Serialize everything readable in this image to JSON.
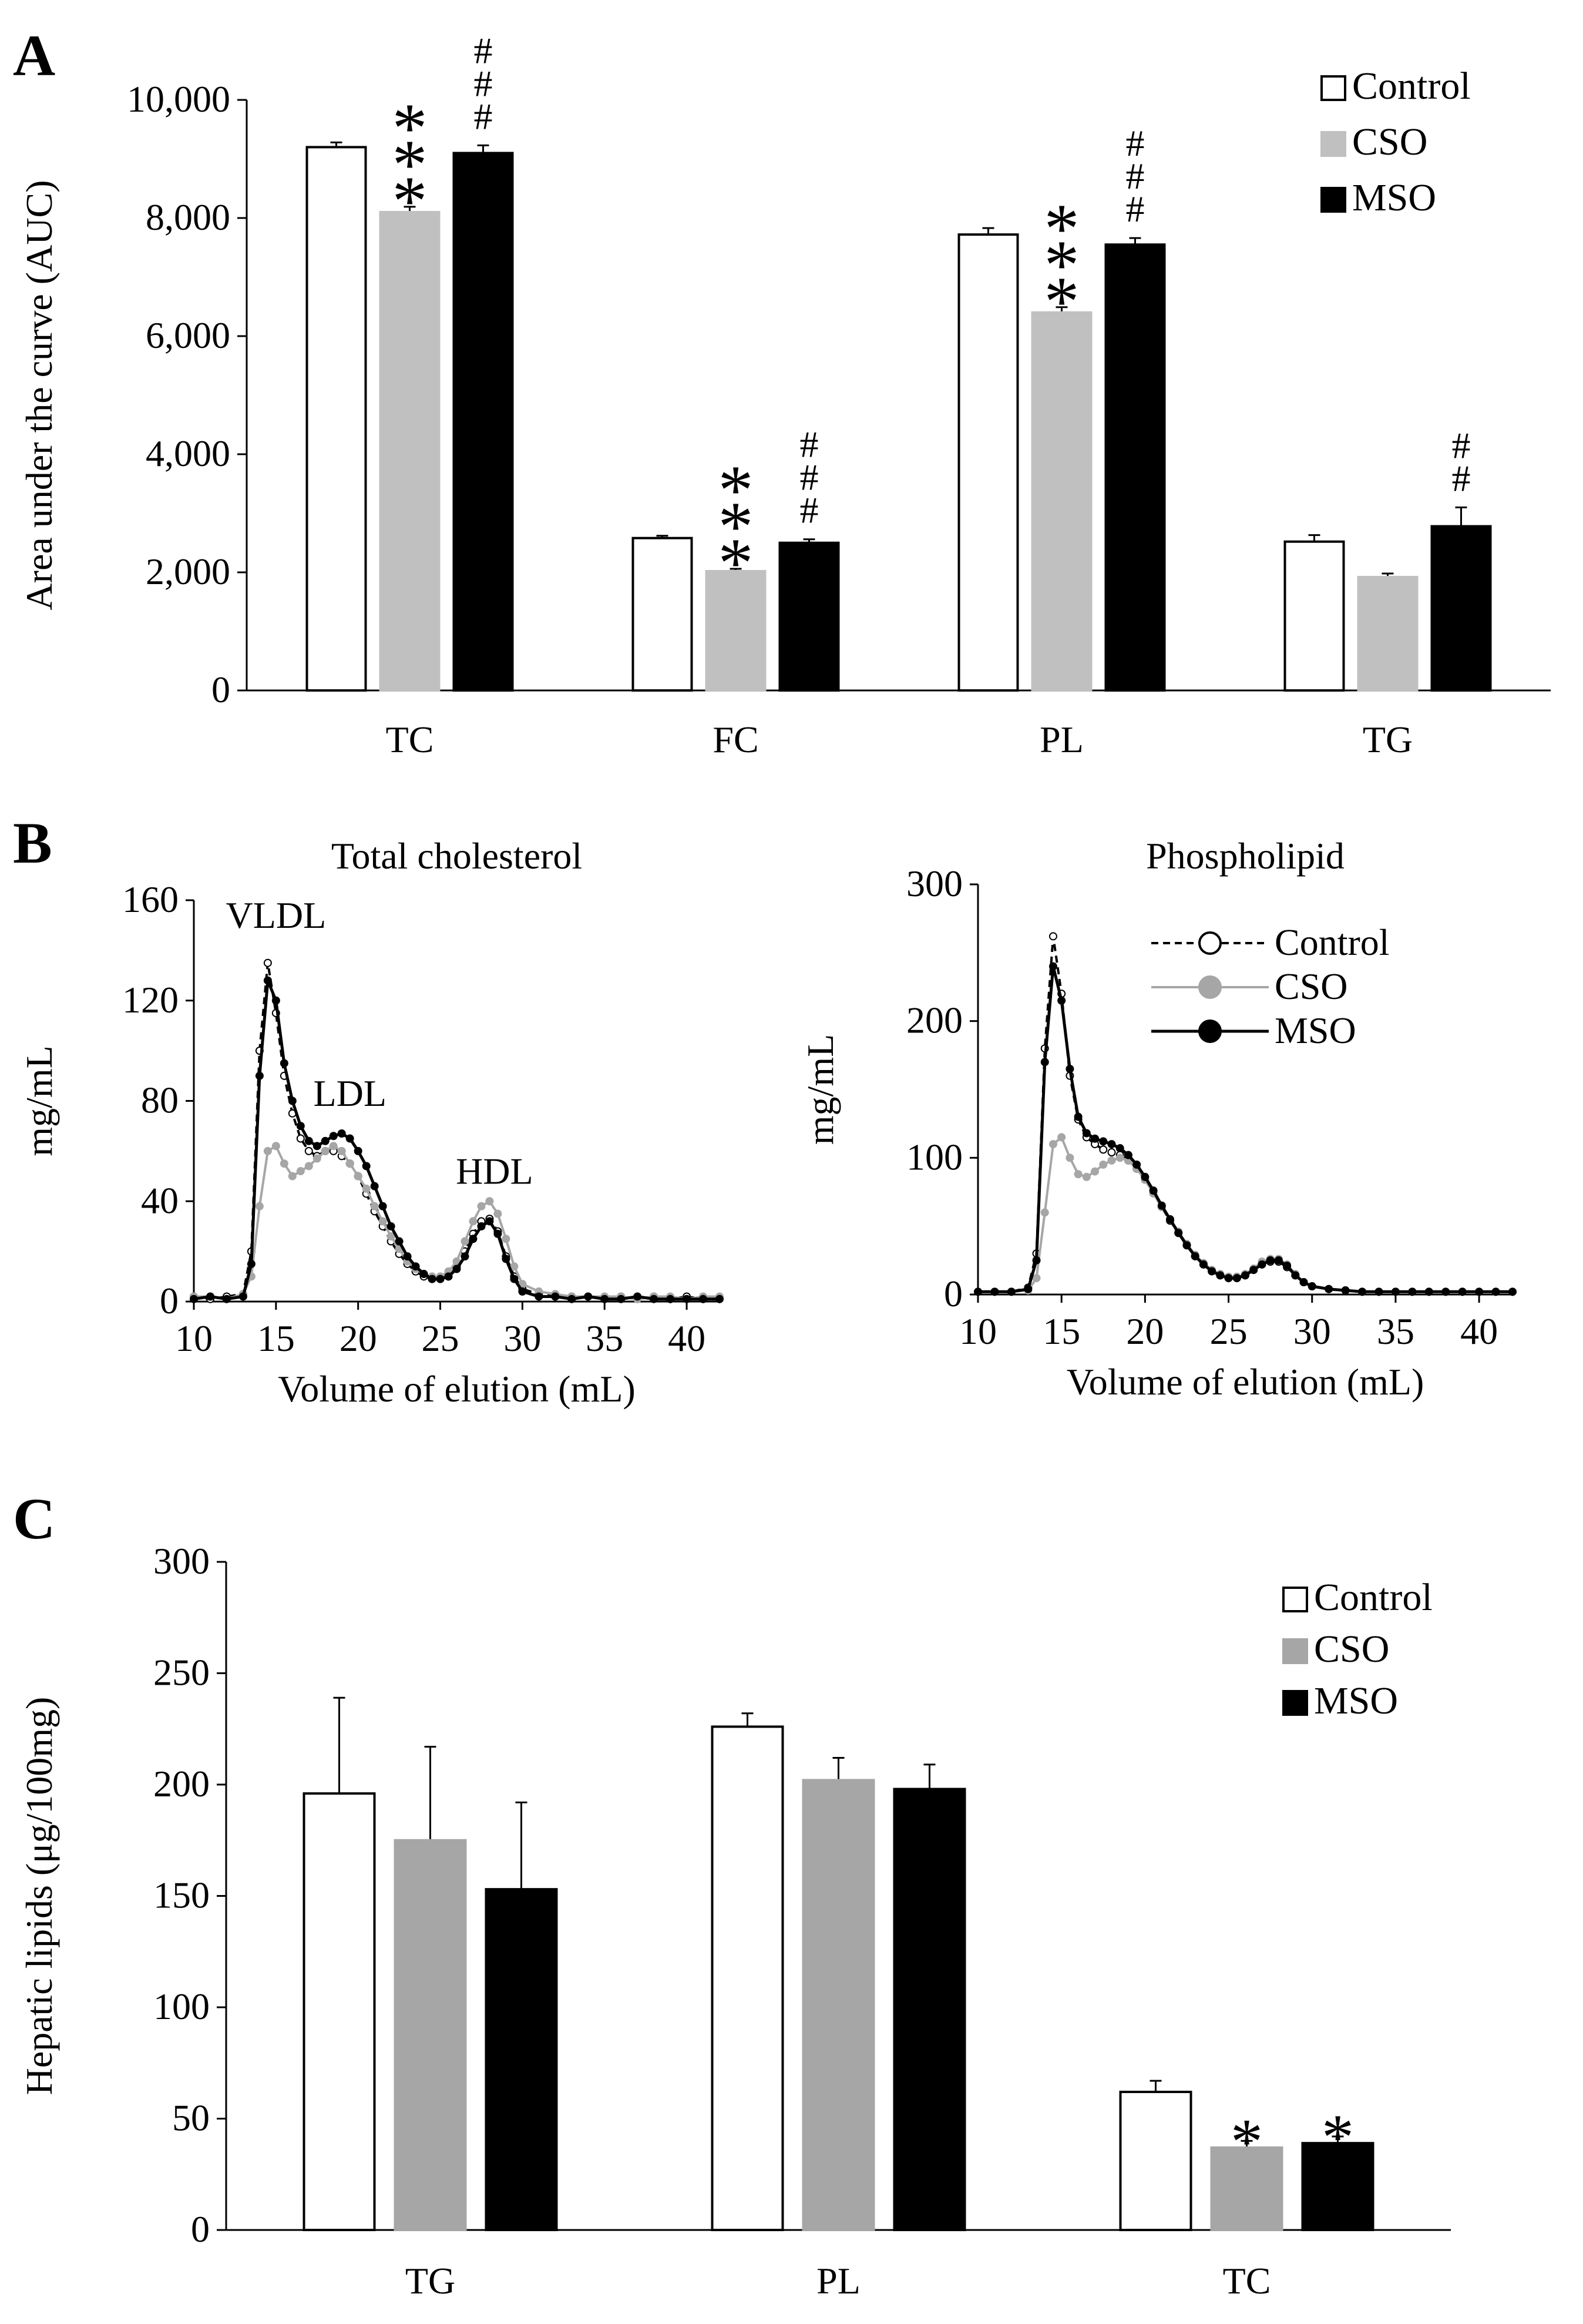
{
  "chart_data": [
    {
      "panel": "A",
      "type": "bar",
      "ylabel": "Area under the curve (AUC)",
      "xlabel": "",
      "ylim": [
        0,
        10000
      ],
      "yticks": [
        0,
        2000,
        4000,
        6000,
        8000,
        10000
      ],
      "ytick_labels": [
        "0",
        "2,000",
        "4,000",
        "6,000",
        "8,000",
        "10,000"
      ],
      "categories": [
        "TC",
        "FC",
        "PL",
        "TG"
      ],
      "series": [
        {
          "name": "Control",
          "color": "#ffffff",
          "values": [
            9200,
            2580,
            7720,
            2520
          ],
          "errors": [
            80,
            40,
            110,
            110
          ]
        },
        {
          "name": "CSO",
          "color": "#c0c0c0",
          "values": [
            8100,
            2020,
            6400,
            1920
          ],
          "errors": [
            90,
            40,
            90,
            60
          ]
        },
        {
          "name": "MSO",
          "color": "#000000",
          "values": [
            9100,
            2500,
            7550,
            2780
          ],
          "errors": [
            130,
            60,
            110,
            320
          ]
        }
      ],
      "annotations": [
        {
          "series": 1,
          "category": 0,
          "text": "***"
        },
        {
          "series": 2,
          "category": 0,
          "text": "###"
        },
        {
          "series": 1,
          "category": 1,
          "text": "***"
        },
        {
          "series": 2,
          "category": 1,
          "text": "###"
        },
        {
          "series": 1,
          "category": 2,
          "text": "***"
        },
        {
          "series": 2,
          "category": 2,
          "text": "###"
        },
        {
          "series": 2,
          "category": 3,
          "text": "##"
        }
      ],
      "legend": "top-right"
    },
    {
      "panel": "B",
      "type": "line",
      "title": "Total cholesterol",
      "xlabel": "Volume of elution (mL)",
      "ylabel": "mg/mL",
      "xlim": [
        10,
        42
      ],
      "ylim": [
        0,
        160
      ],
      "xticks": [
        10,
        15,
        20,
        25,
        30,
        35,
        40
      ],
      "yticks": [
        0,
        40,
        80,
        120,
        160
      ],
      "annotations": [
        {
          "text": "VLDL",
          "x": 15,
          "y": 149
        },
        {
          "text": "LDL",
          "x": 19.5,
          "y": 78
        },
        {
          "text": "HDL",
          "x": 28.3,
          "y": 47
        }
      ],
      "x": [
        10,
        11,
        12,
        13,
        13.5,
        14,
        14.5,
        15,
        15.5,
        16,
        16.5,
        17,
        17.5,
        18,
        18.5,
        19,
        19.5,
        20,
        20.5,
        21,
        21.5,
        22,
        22.5,
        23,
        23.5,
        24,
        24.5,
        25,
        25.5,
        26,
        26.5,
        27,
        27.5,
        28,
        28.5,
        29,
        29.5,
        30,
        31,
        32,
        33,
        34,
        35,
        36,
        37,
        38,
        39,
        40,
        41,
        42
      ],
      "series": [
        {
          "name": "Control",
          "style": "dashed",
          "values": [
            2,
            1,
            2,
            3,
            20,
            100,
            135,
            115,
            90,
            75,
            65,
            60,
            58,
            60,
            60,
            58,
            55,
            50,
            43,
            36,
            30,
            24,
            19,
            15,
            12,
            10,
            9,
            9,
            10,
            14,
            20,
            27,
            32,
            33,
            28,
            18,
            10,
            5,
            3,
            2,
            2,
            2,
            1,
            2,
            1,
            2,
            1,
            2,
            1,
            1
          ]
        },
        {
          "name": "CSO",
          "style": "gray",
          "values": [
            2,
            2,
            1,
            3,
            10,
            38,
            60,
            62,
            55,
            50,
            52,
            54,
            57,
            60,
            62,
            60,
            55,
            50,
            45,
            38,
            32,
            26,
            21,
            16,
            13,
            11,
            10,
            10,
            12,
            16,
            24,
            32,
            38,
            40,
            35,
            25,
            14,
            7,
            4,
            3,
            2,
            2,
            2,
            2,
            1,
            2,
            2,
            1,
            2,
            2
          ]
        },
        {
          "name": "MSO",
          "style": "black",
          "values": [
            1,
            2,
            1,
            2,
            15,
            90,
            128,
            120,
            95,
            80,
            70,
            64,
            62,
            64,
            66,
            67,
            65,
            60,
            54,
            46,
            38,
            30,
            24,
            18,
            14,
            11,
            9,
            9,
            10,
            13,
            18,
            25,
            30,
            32,
            27,
            17,
            9,
            4,
            2,
            2,
            1,
            2,
            1,
            1,
            2,
            1,
            1,
            1,
            1,
            1
          ]
        }
      ]
    },
    {
      "panel": "B",
      "type": "line",
      "title": "Phospholipid",
      "xlabel": "Volume of elution (mL)",
      "ylabel": "mg/mL",
      "xlim": [
        10,
        42
      ],
      "ylim": [
        0,
        300
      ],
      "xticks": [
        10,
        15,
        20,
        25,
        30,
        35,
        40
      ],
      "yticks": [
        0,
        100,
        200,
        300
      ],
      "legend": "top-right",
      "x": [
        10,
        11,
        12,
        13,
        13.5,
        14,
        14.5,
        15,
        15.5,
        16,
        16.5,
        17,
        17.5,
        18,
        18.5,
        19,
        19.5,
        20,
        20.5,
        21,
        21.5,
        22,
        22.5,
        23,
        23.5,
        24,
        24.5,
        25,
        25.5,
        26,
        26.5,
        27,
        27.5,
        28,
        28.5,
        29,
        29.5,
        30,
        31,
        32,
        33,
        34,
        35,
        36,
        37,
        38,
        39,
        40,
        41,
        42
      ],
      "series": [
        {
          "name": "Control",
          "style": "dashed",
          "values": [
            2,
            2,
            2,
            5,
            30,
            180,
            262,
            220,
            160,
            128,
            115,
            110,
            106,
            104,
            102,
            98,
            92,
            84,
            74,
            64,
            54,
            45,
            36,
            28,
            22,
            17,
            14,
            12,
            12,
            14,
            18,
            22,
            24,
            24,
            20,
            14,
            9,
            6,
            4,
            3,
            2,
            2,
            2,
            2,
            2,
            2,
            2,
            2,
            2,
            2
          ]
        },
        {
          "name": "CSO",
          "style": "gray",
          "values": [
            2,
            2,
            2,
            3,
            12,
            60,
            110,
            115,
            100,
            88,
            86,
            90,
            95,
            98,
            100,
            98,
            92,
            84,
            74,
            64,
            55,
            46,
            37,
            29,
            23,
            18,
            15,
            13,
            13,
            15,
            19,
            24,
            26,
            26,
            22,
            15,
            9,
            6,
            4,
            3,
            2,
            2,
            2,
            2,
            2,
            2,
            2,
            2,
            2,
            2
          ]
        },
        {
          "name": "MSO",
          "style": "black",
          "values": [
            2,
            2,
            2,
            4,
            25,
            170,
            240,
            215,
            165,
            130,
            118,
            114,
            112,
            110,
            107,
            102,
            95,
            86,
            76,
            65,
            55,
            45,
            36,
            28,
            22,
            17,
            14,
            12,
            12,
            14,
            18,
            22,
            25,
            25,
            21,
            14,
            9,
            6,
            4,
            3,
            2,
            2,
            2,
            2,
            2,
            2,
            2,
            2,
            2,
            2
          ]
        }
      ]
    },
    {
      "panel": "C",
      "type": "bar",
      "ylabel": "Hepatic lipids (μg/100mg)",
      "xlabel": "",
      "ylim": [
        0,
        300
      ],
      "yticks": [
        0,
        50,
        100,
        150,
        200,
        250,
        300
      ],
      "categories": [
        "TG",
        "PL",
        "TC"
      ],
      "series": [
        {
          "name": "Control",
          "color": "#ffffff",
          "values": [
            196,
            226,
            62
          ],
          "errors": [
            43,
            6,
            5
          ]
        },
        {
          "name": "CSO",
          "color": "#a6a6a6",
          "values": [
            175,
            202,
            37
          ],
          "errors": [
            42,
            10,
            3
          ]
        },
        {
          "name": "MSO",
          "color": "#000000",
          "values": [
            153,
            198,
            39
          ],
          "errors": [
            39,
            11,
            3
          ]
        }
      ],
      "annotations": [
        {
          "series": 1,
          "category": 2,
          "text": "*"
        },
        {
          "series": 2,
          "category": 2,
          "text": "*"
        }
      ],
      "legend": "top-right"
    }
  ]
}
